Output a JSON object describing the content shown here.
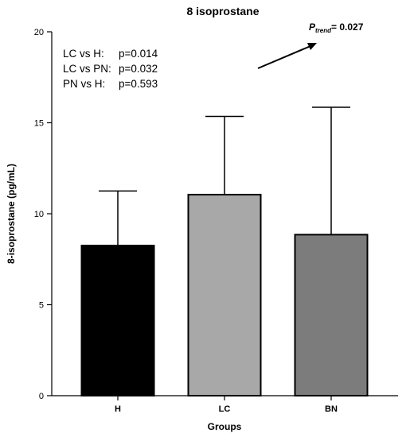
{
  "chart_data": {
    "type": "bar",
    "title": "8 isoprostane",
    "xlabel": "Groups",
    "ylabel": "8-isoprostane (pg/mL)",
    "ylim": [
      0,
      20
    ],
    "yticks": [
      0,
      5,
      10,
      15,
      20
    ],
    "categories": [
      "H",
      "LC",
      "BN"
    ],
    "values": [
      8.25,
      11.05,
      8.85
    ],
    "error_upper": [
      11.25,
      15.35,
      15.85
    ],
    "bar_colors": [
      "#000000",
      "#a8a8a8",
      "#7c7c7c"
    ],
    "grid": false,
    "annotations": {
      "comparisons": [
        {
          "label": "LC vs H:",
          "p": "p=0.014"
        },
        {
          "label": "LC vs PN:",
          "p": "p=0.032"
        },
        {
          "label": "PN vs H:",
          "p": "p=0.593"
        }
      ],
      "trend": {
        "p_symbol": "P",
        "subscript": "trend",
        "value": "= 0.027"
      }
    }
  }
}
